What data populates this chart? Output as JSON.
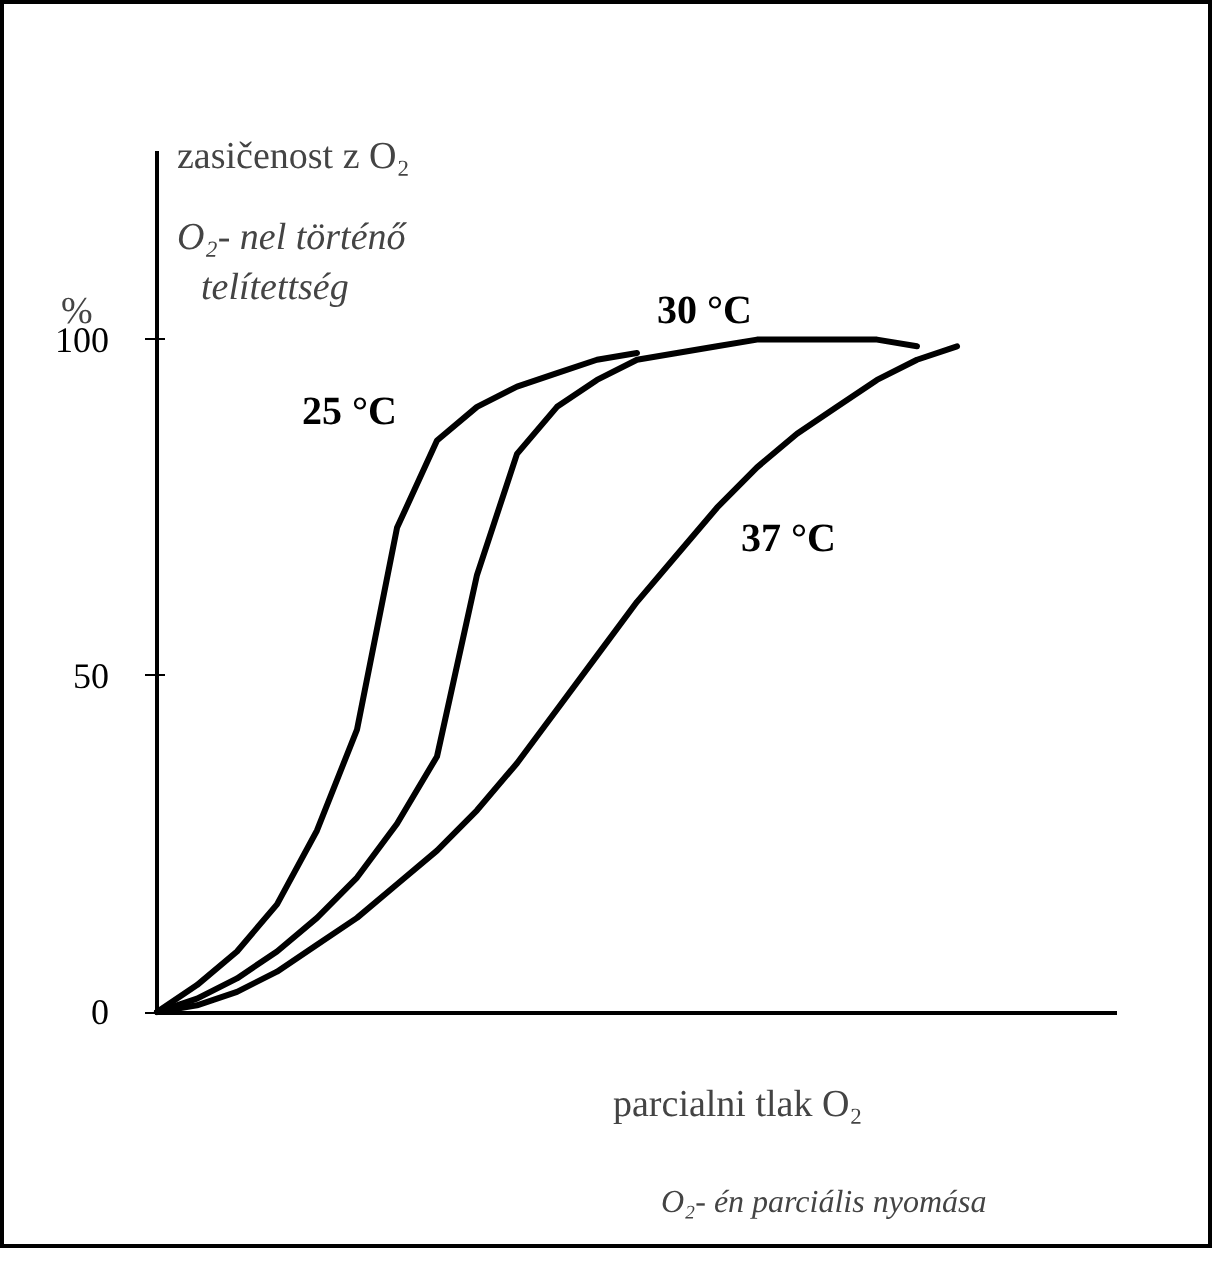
{
  "chart_data": {
    "type": "line",
    "ylabel": "zasičenost z O₂",
    "xlabel": "parcialni tlak O₂",
    "annotations": [
      "%",
      "O₂- nel történő telítettség",
      "O₂- én parciális nyomása"
    ],
    "categories": [
      null,
      null,
      null,
      null,
      null,
      null,
      null,
      null,
      null,
      null,
      null,
      null,
      null,
      null,
      null,
      null,
      null,
      null,
      null,
      null,
      null
    ],
    "series": [
      {
        "name": "25 °C",
        "color": "#000000",
        "values": [
          0,
          4,
          9,
          16,
          27,
          42,
          72,
          85,
          90,
          93,
          95,
          97,
          98,
          null,
          null,
          null,
          null,
          null,
          null,
          null,
          null
        ]
      },
      {
        "name": "30 °C",
        "color": "#000000",
        "values": [
          0,
          2,
          5,
          9,
          14,
          20,
          28,
          38,
          65,
          83,
          90,
          94,
          97,
          98,
          99,
          100,
          100,
          100,
          100,
          99,
          null
        ]
      },
      {
        "name": "37 °C",
        "color": "#000000",
        "values": [
          0,
          1,
          3,
          6,
          10,
          14,
          19,
          24,
          30,
          37,
          45,
          53,
          61,
          68,
          75,
          81,
          86,
          90,
          94,
          97,
          99
        ]
      }
    ],
    "ylim": [
      0,
      128
    ],
    "yticks": [
      0,
      50,
      100
    ],
    "tick_labels": "y",
    "grid": false,
    "marker": "none",
    "line_style": "solid"
  }
}
